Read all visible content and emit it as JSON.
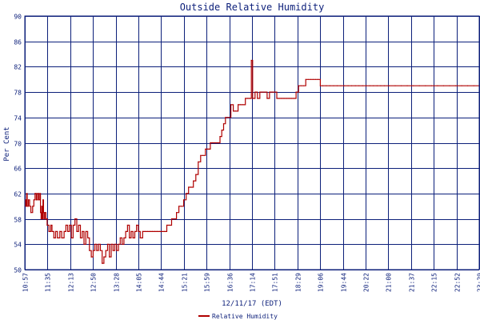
{
  "chart_data": {
    "type": "line",
    "title": "Outside Relative Humidity",
    "xlabel": "12/11/17 (EDT)",
    "ylabel": "Per Cent",
    "ylim": [
      50,
      90
    ],
    "y_ticks": [
      50,
      54,
      58,
      62,
      66,
      70,
      74,
      78,
      82,
      86,
      90
    ],
    "x_ticks": [
      "10:57",
      "11:35",
      "12:13",
      "12:50",
      "13:28",
      "14:05",
      "14:44",
      "15:21",
      "15:59",
      "16:36",
      "17:14",
      "17:51",
      "18:29",
      "19:06",
      "19:44",
      "20:22",
      "21:00",
      "21:37",
      "22:15",
      "22:52",
      "23:29"
    ],
    "x_range_minutes": [
      657,
      1409
    ],
    "grid": true,
    "legend_position": "bottom-center",
    "colors": {
      "series": "#b00000",
      "axis": "#0c1f7a",
      "grid": "#0c1f7a",
      "background": "#ffffff"
    },
    "series": [
      {
        "name": "Relative Humidity",
        "points": [
          [
            657,
            60
          ],
          [
            658,
            61
          ],
          [
            659,
            60
          ],
          [
            660,
            62
          ],
          [
            661,
            60
          ],
          [
            663,
            61
          ],
          [
            665,
            60
          ],
          [
            667,
            59
          ],
          [
            670,
            60
          ],
          [
            672,
            61
          ],
          [
            674,
            62
          ],
          [
            676,
            61
          ],
          [
            678,
            62
          ],
          [
            680,
            61
          ],
          [
            682,
            62
          ],
          [
            683,
            59
          ],
          [
            684,
            58
          ],
          [
            685,
            60
          ],
          [
            686,
            58
          ],
          [
            687,
            61
          ],
          [
            688,
            59
          ],
          [
            689,
            58
          ],
          [
            690,
            59
          ],
          [
            692,
            58
          ],
          [
            694,
            57
          ],
          [
            697,
            56
          ],
          [
            700,
            57
          ],
          [
            702,
            56
          ],
          [
            705,
            55
          ],
          [
            708,
            56
          ],
          [
            711,
            55
          ],
          [
            715,
            56
          ],
          [
            718,
            55
          ],
          [
            722,
            56
          ],
          [
            725,
            57
          ],
          [
            728,
            56
          ],
          [
            731,
            57
          ],
          [
            734,
            55
          ],
          [
            737,
            57
          ],
          [
            740,
            58
          ],
          [
            743,
            56
          ],
          [
            746,
            57
          ],
          [
            749,
            55
          ],
          [
            752,
            56
          ],
          [
            755,
            54
          ],
          [
            758,
            56
          ],
          [
            761,
            55
          ],
          [
            764,
            53
          ],
          [
            767,
            52
          ],
          [
            770,
            53
          ],
          [
            773,
            54
          ],
          [
            776,
            53
          ],
          [
            779,
            54
          ],
          [
            782,
            53
          ],
          [
            785,
            51
          ],
          [
            788,
            52
          ],
          [
            791,
            53
          ],
          [
            794,
            54
          ],
          [
            797,
            52
          ],
          [
            800,
            54
          ],
          [
            803,
            53
          ],
          [
            806,
            54
          ],
          [
            809,
            53
          ],
          [
            812,
            54
          ],
          [
            815,
            55
          ],
          [
            818,
            54
          ],
          [
            821,
            55
          ],
          [
            824,
            56
          ],
          [
            827,
            57
          ],
          [
            830,
            55
          ],
          [
            833,
            56
          ],
          [
            836,
            55
          ],
          [
            839,
            56
          ],
          [
            842,
            57
          ],
          [
            845,
            56
          ],
          [
            848,
            55
          ],
          [
            852,
            56
          ],
          [
            856,
            56
          ],
          [
            860,
            56
          ],
          [
            864,
            56
          ],
          [
            868,
            56
          ],
          [
            872,
            56
          ],
          [
            876,
            56
          ],
          [
            880,
            56
          ],
          [
            884,
            56
          ],
          [
            888,
            56
          ],
          [
            892,
            57
          ],
          [
            896,
            57
          ],
          [
            900,
            58
          ],
          [
            904,
            58
          ],
          [
            908,
            59
          ],
          [
            912,
            60
          ],
          [
            916,
            60
          ],
          [
            920,
            61
          ],
          [
            924,
            62
          ],
          [
            928,
            63
          ],
          [
            932,
            63
          ],
          [
            936,
            64
          ],
          [
            940,
            65
          ],
          [
            944,
            67
          ],
          [
            948,
            68
          ],
          [
            952,
            68
          ],
          [
            956,
            69
          ],
          [
            960,
            69
          ],
          [
            964,
            70
          ],
          [
            968,
            70
          ],
          [
            972,
            70
          ],
          [
            976,
            70
          ],
          [
            980,
            71
          ],
          [
            983,
            72
          ],
          [
            986,
            73
          ],
          [
            989,
            74
          ],
          [
            992,
            74
          ],
          [
            995,
            74
          ],
          [
            998,
            76
          ],
          [
            1002,
            75
          ],
          [
            1006,
            75
          ],
          [
            1010,
            76
          ],
          [
            1014,
            76
          ],
          [
            1018,
            76
          ],
          [
            1022,
            77
          ],
          [
            1026,
            77
          ],
          [
            1030,
            77
          ],
          [
            1032,
            83
          ],
          [
            1034,
            77
          ],
          [
            1038,
            78
          ],
          [
            1042,
            77
          ],
          [
            1046,
            78
          ],
          [
            1050,
            78
          ],
          [
            1054,
            78
          ],
          [
            1058,
            77
          ],
          [
            1062,
            78
          ],
          [
            1066,
            78
          ],
          [
            1070,
            78
          ],
          [
            1074,
            77
          ],
          [
            1078,
            77
          ],
          [
            1082,
            77
          ],
          [
            1086,
            77
          ],
          [
            1090,
            77
          ],
          [
            1094,
            77
          ],
          [
            1098,
            77
          ],
          [
            1102,
            77
          ],
          [
            1106,
            78
          ],
          [
            1110,
            79
          ],
          [
            1114,
            79
          ],
          [
            1118,
            79
          ],
          [
            1122,
            80
          ],
          [
            1126,
            80
          ],
          [
            1130,
            80
          ],
          [
            1134,
            80
          ],
          [
            1138,
            80
          ],
          [
            1142,
            80
          ],
          [
            1146,
            79
          ],
          [
            1150,
            79
          ],
          [
            1156,
            79
          ],
          [
            1162,
            79
          ],
          [
            1168,
            79
          ],
          [
            1174,
            79
          ],
          [
            1180,
            79
          ],
          [
            1186,
            79
          ],
          [
            1192,
            79
          ],
          [
            1198,
            79
          ],
          [
            1204,
            79
          ],
          [
            1210,
            79
          ],
          [
            1216,
            79
          ],
          [
            1222,
            79
          ],
          [
            1228,
            79
          ],
          [
            1234,
            79
          ],
          [
            1240,
            79
          ],
          [
            1246,
            79
          ],
          [
            1252,
            79
          ],
          [
            1260,
            79
          ],
          [
            1270,
            79
          ],
          [
            1280,
            79
          ],
          [
            1290,
            79
          ],
          [
            1300,
            79
          ],
          [
            1310,
            79
          ],
          [
            1320,
            79
          ],
          [
            1330,
            79
          ],
          [
            1340,
            79
          ],
          [
            1350,
            79
          ],
          [
            1360,
            79
          ],
          [
            1370,
            79
          ],
          [
            1380,
            79
          ],
          [
            1390,
            79
          ],
          [
            1400,
            79
          ],
          [
            1409,
            79
          ]
        ]
      }
    ]
  }
}
